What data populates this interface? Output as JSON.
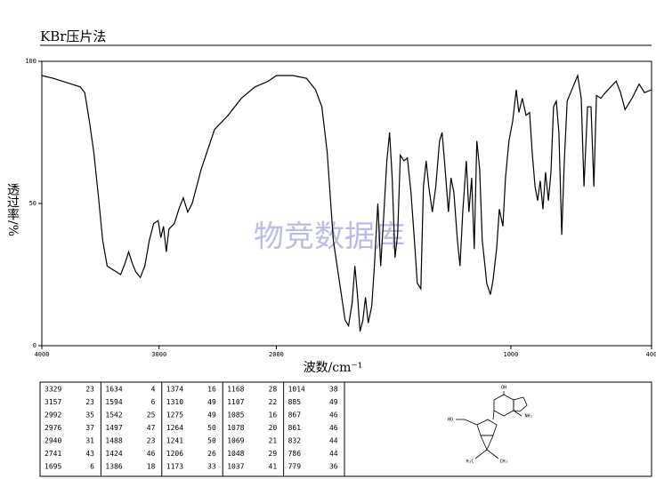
{
  "chart_data": {
    "type": "line",
    "title": "KBr压片法",
    "xlabel": "波数/cm⁻¹",
    "ylabel": "透过率/%",
    "watermark": "物竞数据库",
    "x": [
      4000,
      3901,
      3824,
      3748,
      3672,
      3634,
      3595,
      3557,
      3519,
      3481,
      3443,
      3405,
      3366,
      3328,
      3290,
      3260,
      3229,
      3199,
      3160,
      3122,
      3084,
      3046,
      3008,
      2985,
      2962,
      2939,
      2916,
      2870,
      2832,
      2794,
      2756,
      2718,
      2641,
      2527,
      2412,
      2298,
      2183,
      2069,
      2000,
      1928,
      1871,
      1833,
      1806,
      1783,
      1757,
      1730,
      1707,
      1692,
      1677,
      1665,
      1654,
      1643,
      1631,
      1620,
      1608,
      1593,
      1582,
      1567,
      1555,
      1544,
      1529,
      1517,
      1506,
      1494,
      1483,
      1471,
      1456,
      1441,
      1426,
      1411,
      1399,
      1384,
      1373,
      1361,
      1350,
      1335,
      1320,
      1304,
      1293,
      1282,
      1266,
      1255,
      1243,
      1228,
      1217,
      1205,
      1190,
      1179,
      1167,
      1156,
      1145,
      1133,
      1122,
      1110,
      1103,
      1087,
      1076,
      1061,
      1049,
      1034,
      1023,
      1008,
      992,
      977,
      966,
      951,
      935,
      920,
      909,
      897,
      886,
      875,
      863,
      852,
      840,
      829,
      818,
      806,
      795,
      783,
      772,
      760,
      745,
      730,
      715,
      700,
      688,
      673,
      658,
      646,
      635,
      616,
      597,
      574,
      551,
      532,
      513,
      483,
      453,
      430,
      400
    ],
    "series": [
      {
        "color": "#000000",
        "values": [
          95,
          94,
          93,
          92,
          91,
          89,
          79,
          68,
          53,
          37,
          28,
          27,
          26,
          25,
          29,
          33,
          29,
          26,
          24,
          28,
          37,
          43,
          44,
          38,
          42,
          33,
          41,
          43,
          48,
          52,
          47,
          50,
          62,
          76,
          81,
          87,
          91,
          93,
          95,
          95,
          94,
          90,
          84,
          68,
          37,
          22,
          9,
          7,
          15,
          28,
          18,
          5,
          9,
          17,
          8,
          14,
          28,
          50,
          28,
          43,
          65,
          75,
          59,
          31,
          39,
          67,
          65,
          66,
          54,
          37,
          22,
          20,
          56,
          65,
          56,
          47,
          56,
          72,
          75,
          64,
          47,
          59,
          54,
          37,
          28,
          47,
          65,
          47,
          59,
          34,
          72,
          62,
          37,
          28,
          22,
          18,
          23,
          34,
          48,
          42,
          59,
          72,
          79,
          90,
          82,
          87,
          81,
          82,
          68,
          56,
          51,
          58,
          48,
          61,
          51,
          61,
          84,
          86,
          75,
          39,
          65,
          86,
          89,
          92,
          95,
          87,
          56,
          84,
          84,
          56,
          88,
          87,
          89,
          91,
          93,
          89,
          83,
          87,
          92,
          89,
          90
        ]
      }
    ],
    "xlim": [
      4000,
      400
    ],
    "ylim": [
      0,
      100
    ],
    "xticks": [
      4000,
      3000,
      2000,
      1000,
      400
    ],
    "yticks": [
      0,
      50,
      100
    ],
    "xscale_break": 2000
  },
  "peak_table": [
    [
      [
        3329,
        23
      ],
      [
        3157,
        23
      ],
      [
        2992,
        35
      ],
      [
        2976,
        37
      ],
      [
        2940,
        31
      ],
      [
        2741,
        43
      ],
      [
        1695,
        6
      ]
    ],
    [
      [
        1634,
        4
      ],
      [
        1594,
        6
      ],
      [
        1542,
        25
      ],
      [
        1497,
        47
      ],
      [
        1488,
        23
      ],
      [
        1424,
        46
      ],
      [
        1386,
        18
      ]
    ],
    [
      [
        1374,
        16
      ],
      [
        1310,
        49
      ],
      [
        1275,
        49
      ],
      [
        1264,
        50
      ],
      [
        1241,
        50
      ],
      [
        1206,
        26
      ],
      [
        1173,
        33
      ]
    ],
    [
      [
        1168,
        28
      ],
      [
        1107,
        22
      ],
      [
        1085,
        16
      ],
      [
        1078,
        20
      ],
      [
        1069,
        21
      ],
      [
        1048,
        29
      ],
      [
        1037,
        41
      ]
    ],
    [
      [
        1014,
        38
      ],
      [
        885,
        49
      ],
      [
        867,
        46
      ],
      [
        861,
        46
      ],
      [
        832,
        44
      ],
      [
        786,
        44
      ],
      [
        779,
        36
      ]
    ]
  ],
  "structure": {
    "labels": [
      "OH",
      "NH₂",
      "HO",
      "H₃C",
      "CH₃"
    ]
  }
}
